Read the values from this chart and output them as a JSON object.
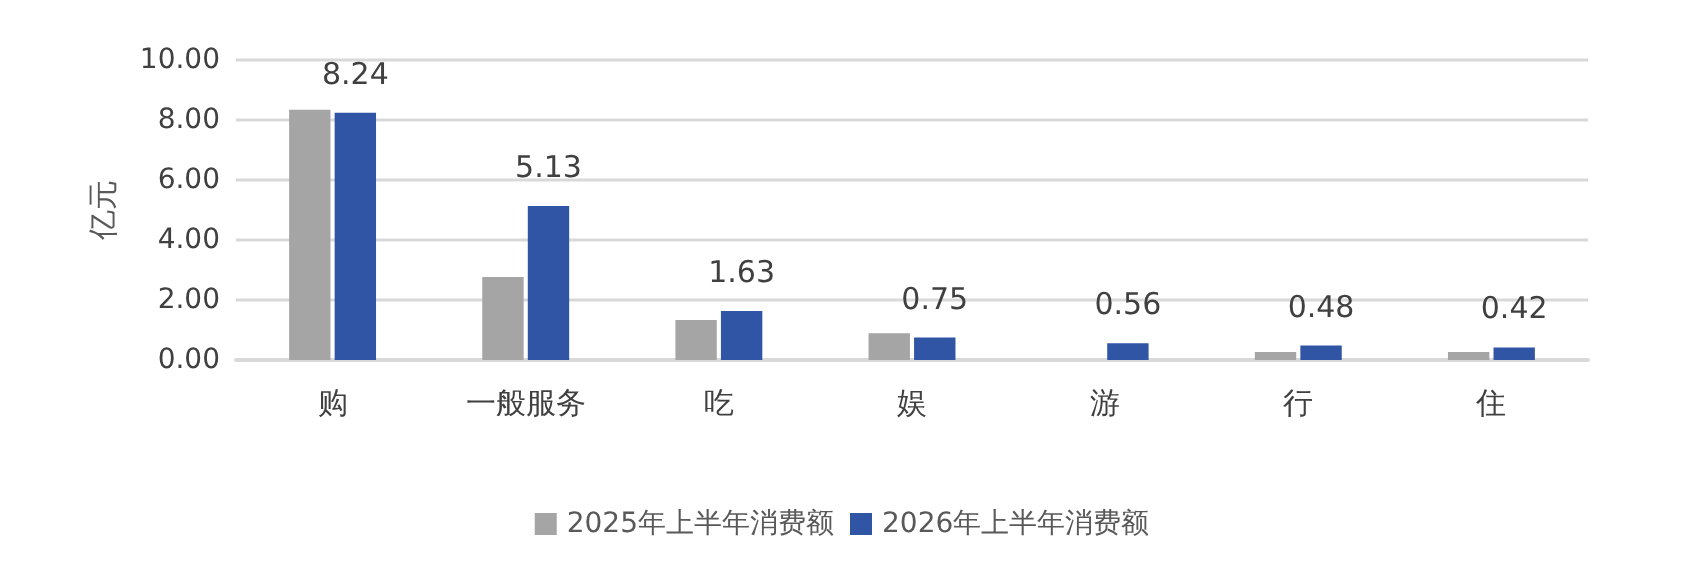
{
  "chart_data": {
    "type": "bar",
    "ylabel": "亿元",
    "categories": [
      "购",
      "一般服务",
      "吃",
      "娱",
      "游",
      "行",
      "住"
    ],
    "series": [
      {
        "name": "2025年上半年消费额",
        "color": "#a5a5a5",
        "values": [
          8.34,
          2.77,
          1.33,
          0.89,
          null,
          0.27,
          0.27
        ]
      },
      {
        "name": "2026年上半年消费额",
        "color": "#2f55a4",
        "values": [
          8.24,
          5.13,
          1.63,
          0.75,
          0.56,
          0.48,
          0.42
        ],
        "value_labels": [
          "8.24",
          "5.13",
          "1.63",
          "0.75",
          "0.56",
          "0.48",
          "0.42"
        ]
      }
    ],
    "ylim": [
      0,
      10
    ],
    "yticks": [
      {
        "value": 0,
        "label": "0.00"
      },
      {
        "value": 2,
        "label": "2.00"
      },
      {
        "value": 4,
        "label": "4.00"
      },
      {
        "value": 6,
        "label": "6.00"
      },
      {
        "value": 8,
        "label": "8.00"
      },
      {
        "value": 10,
        "label": "10.00"
      }
    ],
    "grid": "y",
    "legend": "bottom"
  }
}
